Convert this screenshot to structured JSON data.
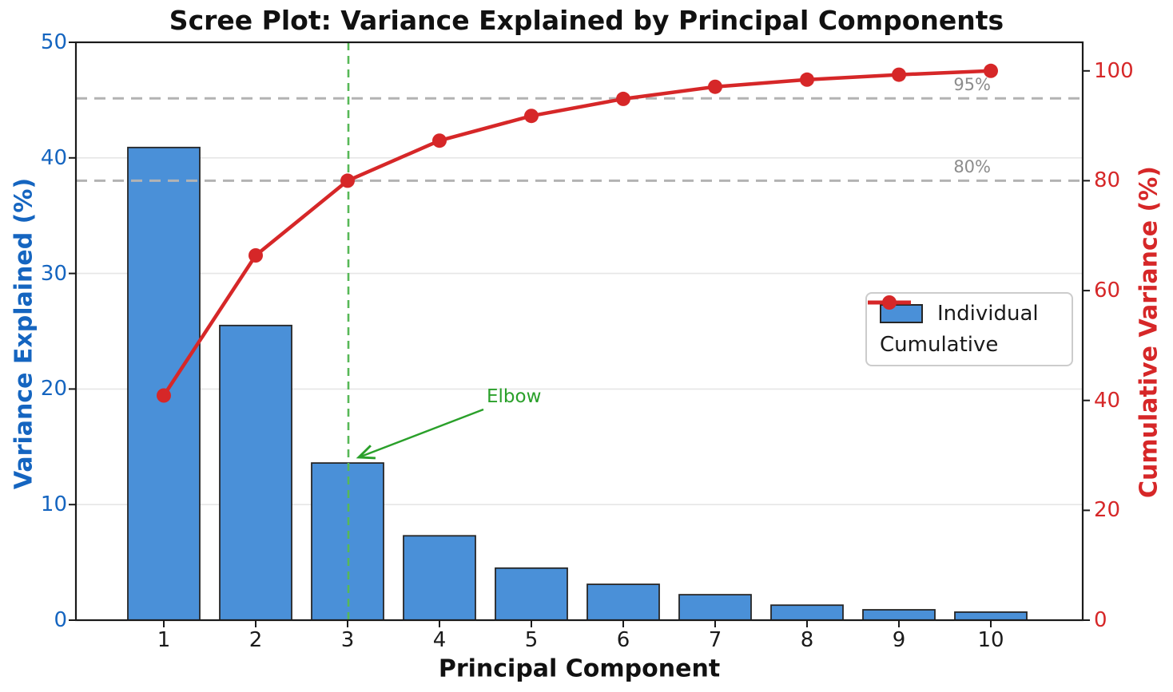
{
  "chart_data": {
    "type": "bar",
    "title": "Scree Plot: Variance Explained by Principal Components",
    "categories": [
      "1",
      "2",
      "3",
      "4",
      "5",
      "6",
      "7",
      "8",
      "9",
      "10"
    ],
    "xlabel": "Principal Component",
    "ylabel_left": "Variance Explained (%)",
    "ylabel_right": "Cumulative Variance (%)",
    "ylim_left": [
      0,
      50
    ],
    "ylim_right": [
      0,
      105
    ],
    "yticks_left": [
      0,
      10,
      20,
      30,
      40,
      50
    ],
    "yticks_right": [
      0,
      20,
      40,
      60,
      80,
      100
    ],
    "grid": "horizontal-left-axis",
    "legend_position": "center-right",
    "series": [
      {
        "name": "Individual",
        "type": "bar",
        "axis": "left",
        "values": [
          40.9,
          25.5,
          13.6,
          7.3,
          4.5,
          3.1,
          2.2,
          1.3,
          0.9,
          0.7
        ]
      },
      {
        "name": "Cumulative",
        "type": "line",
        "axis": "right",
        "values": [
          40.9,
          66.4,
          80.0,
          87.3,
          91.8,
          94.9,
          97.1,
          98.4,
          99.3,
          100.0
        ]
      }
    ],
    "reference_lines": [
      {
        "axis": "right",
        "value": 80,
        "label": "80%",
        "style": "dashed"
      },
      {
        "axis": "right",
        "value": 95,
        "label": "95%",
        "style": "dashed"
      }
    ],
    "annotations": [
      {
        "text": "Elbow",
        "target_component": 3
      }
    ],
    "elbow_vline": {
      "x": 3,
      "style": "dashed"
    }
  },
  "colors": {
    "bar_fill": "#4a90d8",
    "bar_edge": "#262626",
    "line": "#d62728",
    "left_axis": "#1565c0",
    "right_axis": "#d62728",
    "grid": "#e6e6e6",
    "ref_line": "#b3b3b3",
    "ref_label": "#8c8c8c",
    "elbow_green": "#2aa02a",
    "vline_green": "#57b857",
    "spine": "#1a1a1a"
  }
}
